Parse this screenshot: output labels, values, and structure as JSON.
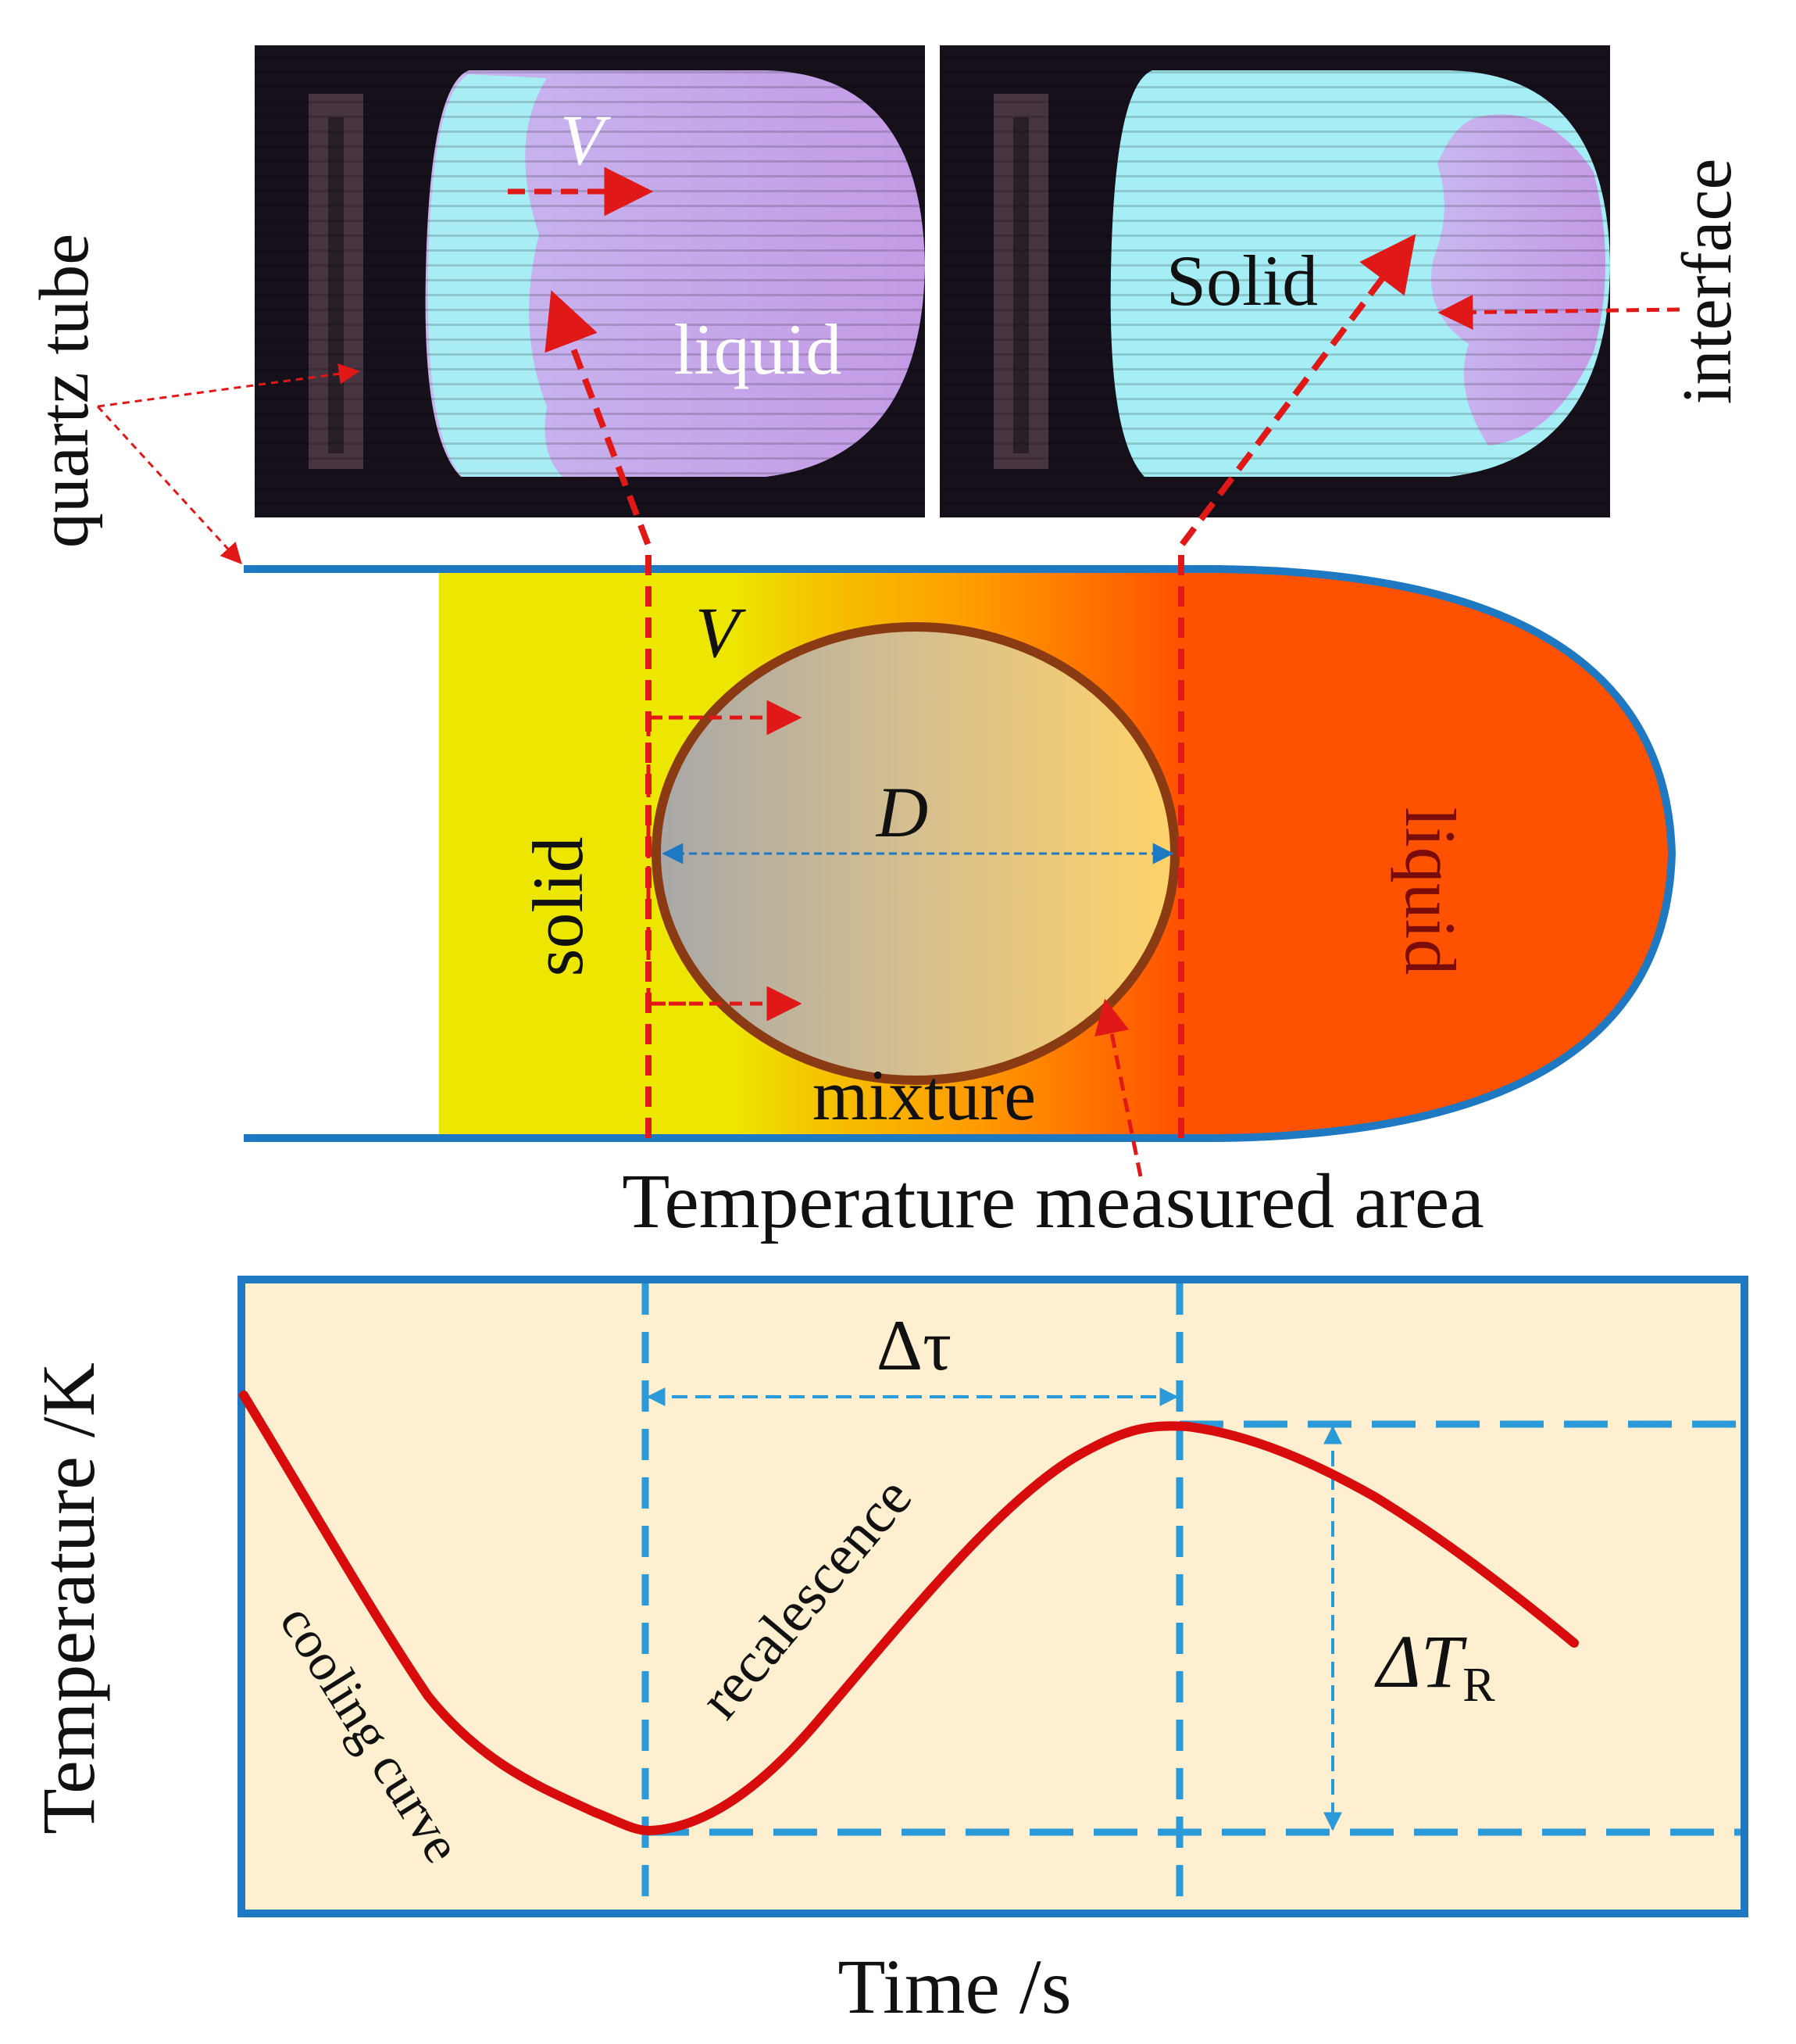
{
  "photos": {
    "left": {
      "label_v": "V",
      "label_phase": "liquid"
    },
    "right": {
      "label_phase": "Solid"
    }
  },
  "labels": {
    "quartz_tube": "quartz tube",
    "interface": "interface",
    "temperature_measured_area": "Temperature measured area"
  },
  "sample": {
    "solid": "solid",
    "liquid": "liquid",
    "mixture": "mixture",
    "v": "V",
    "d": "D"
  },
  "plot": {
    "ylabel": "Temperature /K",
    "xlabel": "Time /s",
    "delta_tau": "Δτ",
    "delta_t": "ΔT",
    "delta_t_sub": "R",
    "cooling_curve": "cooling curve",
    "recalescence": "recalescence"
  },
  "colors": {
    "tube_blue": "#1f78c2",
    "guide_blue": "#2b9ad8",
    "red": "#e01818",
    "curve_red": "#d80c0c",
    "solid_yellow": "#ece600",
    "liquid_orange": "#ff5200",
    "plot_bg": "#fdefcf"
  }
}
